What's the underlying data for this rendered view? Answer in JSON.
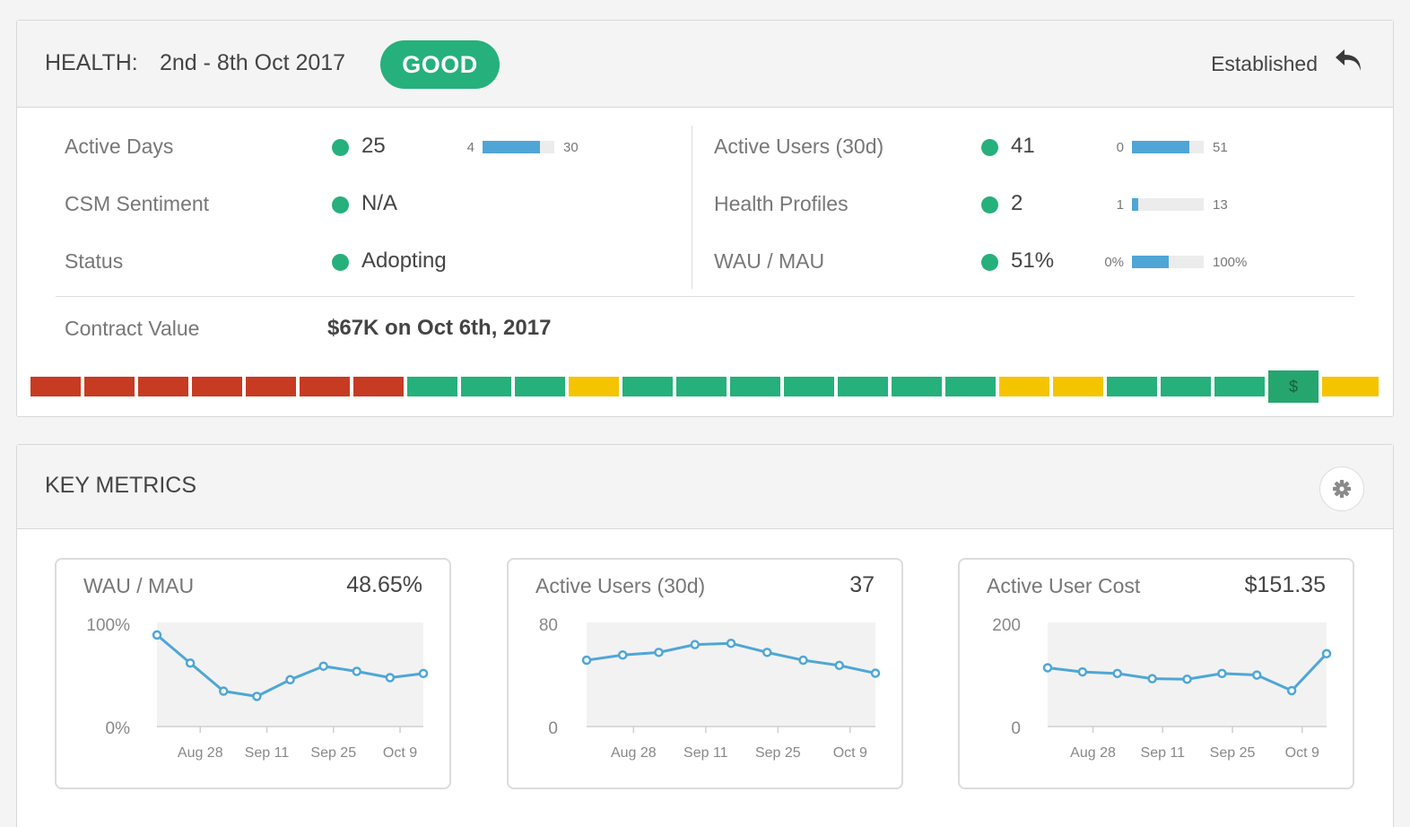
{
  "health": {
    "title": "HEALTH:",
    "date_range": "2nd - 8th Oct 2017",
    "badge": "GOOD",
    "stage": "Established",
    "undo_icon": "undo-arrow-icon",
    "left_rows": [
      {
        "label": "Active Days",
        "value": "25",
        "range": {
          "min": "4",
          "max": "30",
          "fill": 0.8
        }
      },
      {
        "label": "CSM Sentiment",
        "value": "N/A"
      },
      {
        "label": "Status",
        "value": "Adopting"
      }
    ],
    "right_rows": [
      {
        "label": "Active Users (30d)",
        "value": "41",
        "range": {
          "min": "0",
          "max": "51",
          "fill": 0.8
        }
      },
      {
        "label": "Health Profiles",
        "value": "2",
        "range": {
          "min": "1",
          "max": "13",
          "fill": 0.09
        }
      },
      {
        "label": "WAU / MAU",
        "value": "51%",
        "range": {
          "min": "0%",
          "max": "100%",
          "fill": 0.51
        }
      }
    ],
    "contract": {
      "label": "Contract Value",
      "value": "$67K on Oct 6th, 2017"
    },
    "strip": {
      "colors": {
        "red": "#c73b22",
        "green": "#26b07c",
        "yellow": "#f5c400"
      },
      "segments": [
        "red",
        "red",
        "red",
        "red",
        "red",
        "red",
        "red",
        "green",
        "green",
        "green",
        "yellow",
        "green",
        "green",
        "green",
        "green",
        "green",
        "green",
        "green",
        "yellow",
        "yellow",
        "green",
        "green",
        "green",
        "money",
        "yellow"
      ],
      "money_label": "$"
    }
  },
  "key_metrics": {
    "title": "KEY METRICS",
    "settings_icon": "gear-icon",
    "cards": [
      {
        "title": "WAU / MAU",
        "value": "48.65%"
      },
      {
        "title": "Active Users (30d)",
        "value": "37"
      },
      {
        "title": "Active User Cost",
        "value": "$151.35"
      }
    ]
  },
  "chart_data": [
    {
      "type": "line",
      "x_ticks": [
        "Aug 28",
        "Sep 11",
        "Sep 25",
        "Oct 9"
      ],
      "y_tick_labels": [
        "100%",
        "0%"
      ],
      "ylim": [
        0,
        100
      ],
      "values": [
        88,
        61,
        34,
        29,
        45,
        58,
        53,
        47,
        51
      ],
      "grid": false,
      "color": "#4fa6d6"
    },
    {
      "type": "line",
      "x_ticks": [
        "Aug 28",
        "Sep 11",
        "Sep 25",
        "Oct 9"
      ],
      "y_tick_labels": [
        "80",
        "0"
      ],
      "ylim": [
        0,
        80
      ],
      "values": [
        51,
        55,
        57,
        63,
        64,
        57,
        51,
        47,
        41
      ],
      "grid": false,
      "color": "#4fa6d6"
    },
    {
      "type": "line",
      "x_ticks": [
        "Aug 28",
        "Sep 11",
        "Sep 25",
        "Oct 9"
      ],
      "y_tick_labels": [
        "200",
        "0"
      ],
      "ylim": [
        0,
        200
      ],
      "values": [
        113,
        105,
        102,
        92,
        91,
        102,
        99,
        69,
        140
      ],
      "grid": false,
      "color": "#4fa6d6"
    }
  ]
}
